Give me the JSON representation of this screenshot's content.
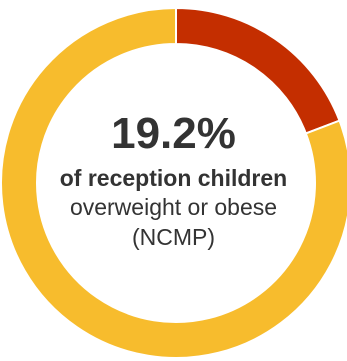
{
  "chart_data": {
    "type": "pie",
    "style": "donut",
    "slices": [
      {
        "label": "overweight or obese",
        "value": 19.2,
        "color": "#c42e00"
      },
      {
        "label": "",
        "value": 80.8,
        "color": "#f7bc2d"
      }
    ],
    "center": {
      "value_text": "19.2%",
      "line1": "of reception children",
      "line2": "overweight or obese",
      "line3": "(NCMP)"
    }
  }
}
